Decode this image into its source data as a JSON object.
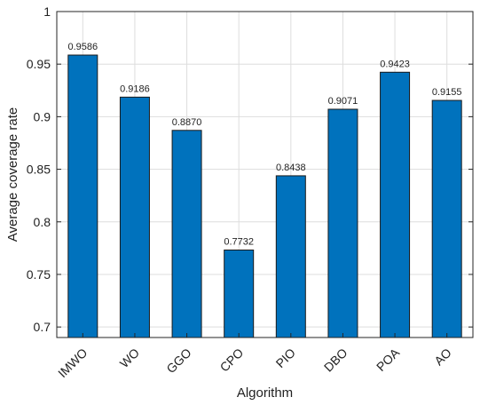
{
  "chart_data": {
    "type": "bar",
    "title": "",
    "xlabel": "Algorithm",
    "ylabel": "Average coverage rate",
    "categories": [
      "IMWO",
      "WO",
      "GGO",
      "CPO",
      "PIO",
      "DBO",
      "POA",
      "AO"
    ],
    "values": [
      0.9586,
      0.9186,
      0.887,
      0.7732,
      0.8438,
      0.9071,
      0.9423,
      0.9155
    ],
    "data_labels": [
      "0.9586",
      "0.9186",
      "0.8870",
      "0.7732",
      "0.8438",
      "0.9071",
      "0.9423",
      "0.9155"
    ],
    "ylim": [
      0.69,
      1.0
    ],
    "yticks": [
      0.7,
      0.75,
      0.8,
      0.85,
      0.9,
      0.95,
      1
    ],
    "ytick_labels": [
      "0.7",
      "0.75",
      "0.8",
      "0.85",
      "0.9",
      "0.95",
      "1"
    ],
    "grid": true,
    "bar_color": "#0072BD",
    "bar_edge_color": "#1a1a1a",
    "grid_color": "#dddddd",
    "axis_color": "#262626"
  }
}
